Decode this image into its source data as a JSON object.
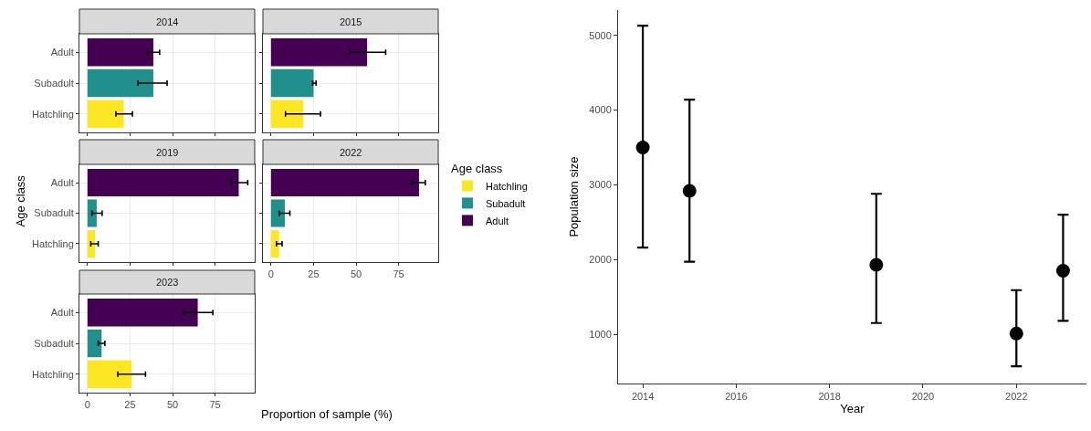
{
  "chart_data": [
    {
      "type": "bar",
      "orientation": "horizontal",
      "title": "2014",
      "categories": [
        "Adult",
        "Subadult",
        "Hatchling"
      ],
      "series": [
        {
          "color": "#fde725",
          "values": [
            null,
            null,
            21.3
          ],
          "errors": [
            null,
            null,
            [
              16.7,
              26.4
            ]
          ]
        },
        {
          "color": "#21908c",
          "values": [
            null,
            38.7,
            null
          ],
          "errors": [
            null,
            [
              29.7,
              46.8
            ],
            null
          ]
        },
        {
          "color": "#440154",
          "values": [
            38.7,
            null,
            null
          ],
          "errors": [
            [
              35.4,
              42.4
            ],
            null,
            null
          ]
        }
      ],
      "xlim": [
        -4.75,
        98.3
      ],
      "xticks": [
        0,
        25,
        50,
        75
      ],
      "grid": true,
      "tick_labels": "y"
    },
    {
      "type": "bar",
      "orientation": "horizontal",
      "title": "2015",
      "categories": [
        null,
        null,
        null
      ],
      "series": [
        {
          "color": "#fde725",
          "values": [
            null,
            null,
            19.0
          ],
          "errors": [
            null,
            null,
            [
              8.5,
              29.1
            ]
          ]
        },
        {
          "color": "#21908c",
          "values": [
            null,
            25.0,
            null
          ],
          "errors": [
            null,
            [
              24.5,
              26.5
            ],
            null
          ]
        },
        {
          "color": "#440154",
          "values": [
            56.5,
            null,
            null
          ],
          "errors": [
            [
              46.3,
              67.4
            ],
            null,
            null
          ]
        }
      ],
      "xlim": [
        -4.75,
        98.3
      ],
      "xticks": [
        0,
        25,
        50,
        75
      ],
      "grid": true,
      "tick_labels": false
    },
    {
      "type": "bar",
      "orientation": "horizontal",
      "title": "2019",
      "ylabel": "Age class",
      "categories": [
        "Adult",
        "Subadult",
        "Hatchling"
      ],
      "series": [
        {
          "color": "#fde725",
          "values": [
            null,
            null,
            4.4
          ],
          "errors": [
            null,
            null,
            [
              1.9,
              6.3
            ]
          ]
        },
        {
          "color": "#21908c",
          "values": [
            null,
            5.4,
            null
          ],
          "errors": [
            null,
            [
              2.6,
              8.6
            ],
            null
          ]
        },
        {
          "color": "#440154",
          "values": [
            88.9,
            null,
            null
          ],
          "errors": [
            [
              84.3,
              94.2
            ],
            null,
            null
          ]
        }
      ],
      "xlim": [
        -4.75,
        98.3
      ],
      "xticks": [
        0,
        25,
        50,
        75
      ],
      "grid": true,
      "tick_labels": "y"
    },
    {
      "type": "bar",
      "orientation": "horizontal",
      "title": "2022",
      "legend_title": "Age class",
      "legend": "right",
      "categories": [
        null,
        null,
        null
      ],
      "series": [
        {
          "name": "Hatchling",
          "color": "#fde725",
          "values": [
            null,
            null,
            4.8
          ],
          "errors": [
            null,
            null,
            [
              3.2,
              6.5
            ]
          ]
        },
        {
          "name": "Subadult",
          "color": "#21908c",
          "values": [
            null,
            8.1,
            null
          ],
          "errors": [
            null,
            [
              4.8,
              11.1
            ],
            null
          ]
        },
        {
          "name": "Adult",
          "color": "#440154",
          "values": [
            87.0,
            null,
            null
          ],
          "errors": [
            [
              82.8,
              90.7
            ],
            null,
            null
          ]
        }
      ],
      "xlim": [
        -4.75,
        98.3
      ],
      "xticks": [
        0,
        25,
        50,
        75
      ],
      "grid": true,
      "tick_labels": "x"
    },
    {
      "type": "bar",
      "orientation": "horizontal",
      "title": "2023",
      "xlabel": "Proportion of sample (%)",
      "categories": [
        "Adult",
        "Subadult",
        "Hatchling"
      ],
      "series": [
        {
          "color": "#fde725",
          "values": [
            null,
            null,
            25.9
          ],
          "errors": [
            null,
            null,
            [
              17.8,
              34.1
            ]
          ]
        },
        {
          "color": "#21908c",
          "values": [
            null,
            8.3,
            null
          ],
          "errors": [
            null,
            [
              6.3,
              10.2
            ],
            null
          ]
        },
        {
          "color": "#440154",
          "values": [
            64.8,
            null,
            null
          ],
          "errors": [
            [
              56.7,
              73.7
            ],
            null,
            null
          ]
        }
      ],
      "xlim": [
        -4.75,
        98.3
      ],
      "xticks": [
        0,
        25,
        50,
        75
      ],
      "grid": true
    },
    {
      "type": "scatter",
      "xlabel": "Year",
      "ylabel": "Population size",
      "x": [
        2014,
        2015,
        2019,
        2022,
        2023
      ],
      "values": [
        3500,
        2920,
        1930,
        1010,
        1850
      ],
      "color": "#000000",
      "marker": "circle",
      "errors": [
        [
          2160,
          5130
        ],
        [
          1970,
          4140
        ],
        [
          1150,
          2880
        ],
        [
          570,
          1590
        ],
        [
          1180,
          2600
        ]
      ],
      "xlim": [
        2013.47,
        2023.5
      ],
      "xticks": [
        2014,
        2016,
        2018,
        2020,
        2022
      ],
      "ylim": [
        340,
        5340
      ],
      "yticks": [
        1000,
        2000,
        3000,
        4000,
        5000
      ],
      "grid": false
    }
  ]
}
